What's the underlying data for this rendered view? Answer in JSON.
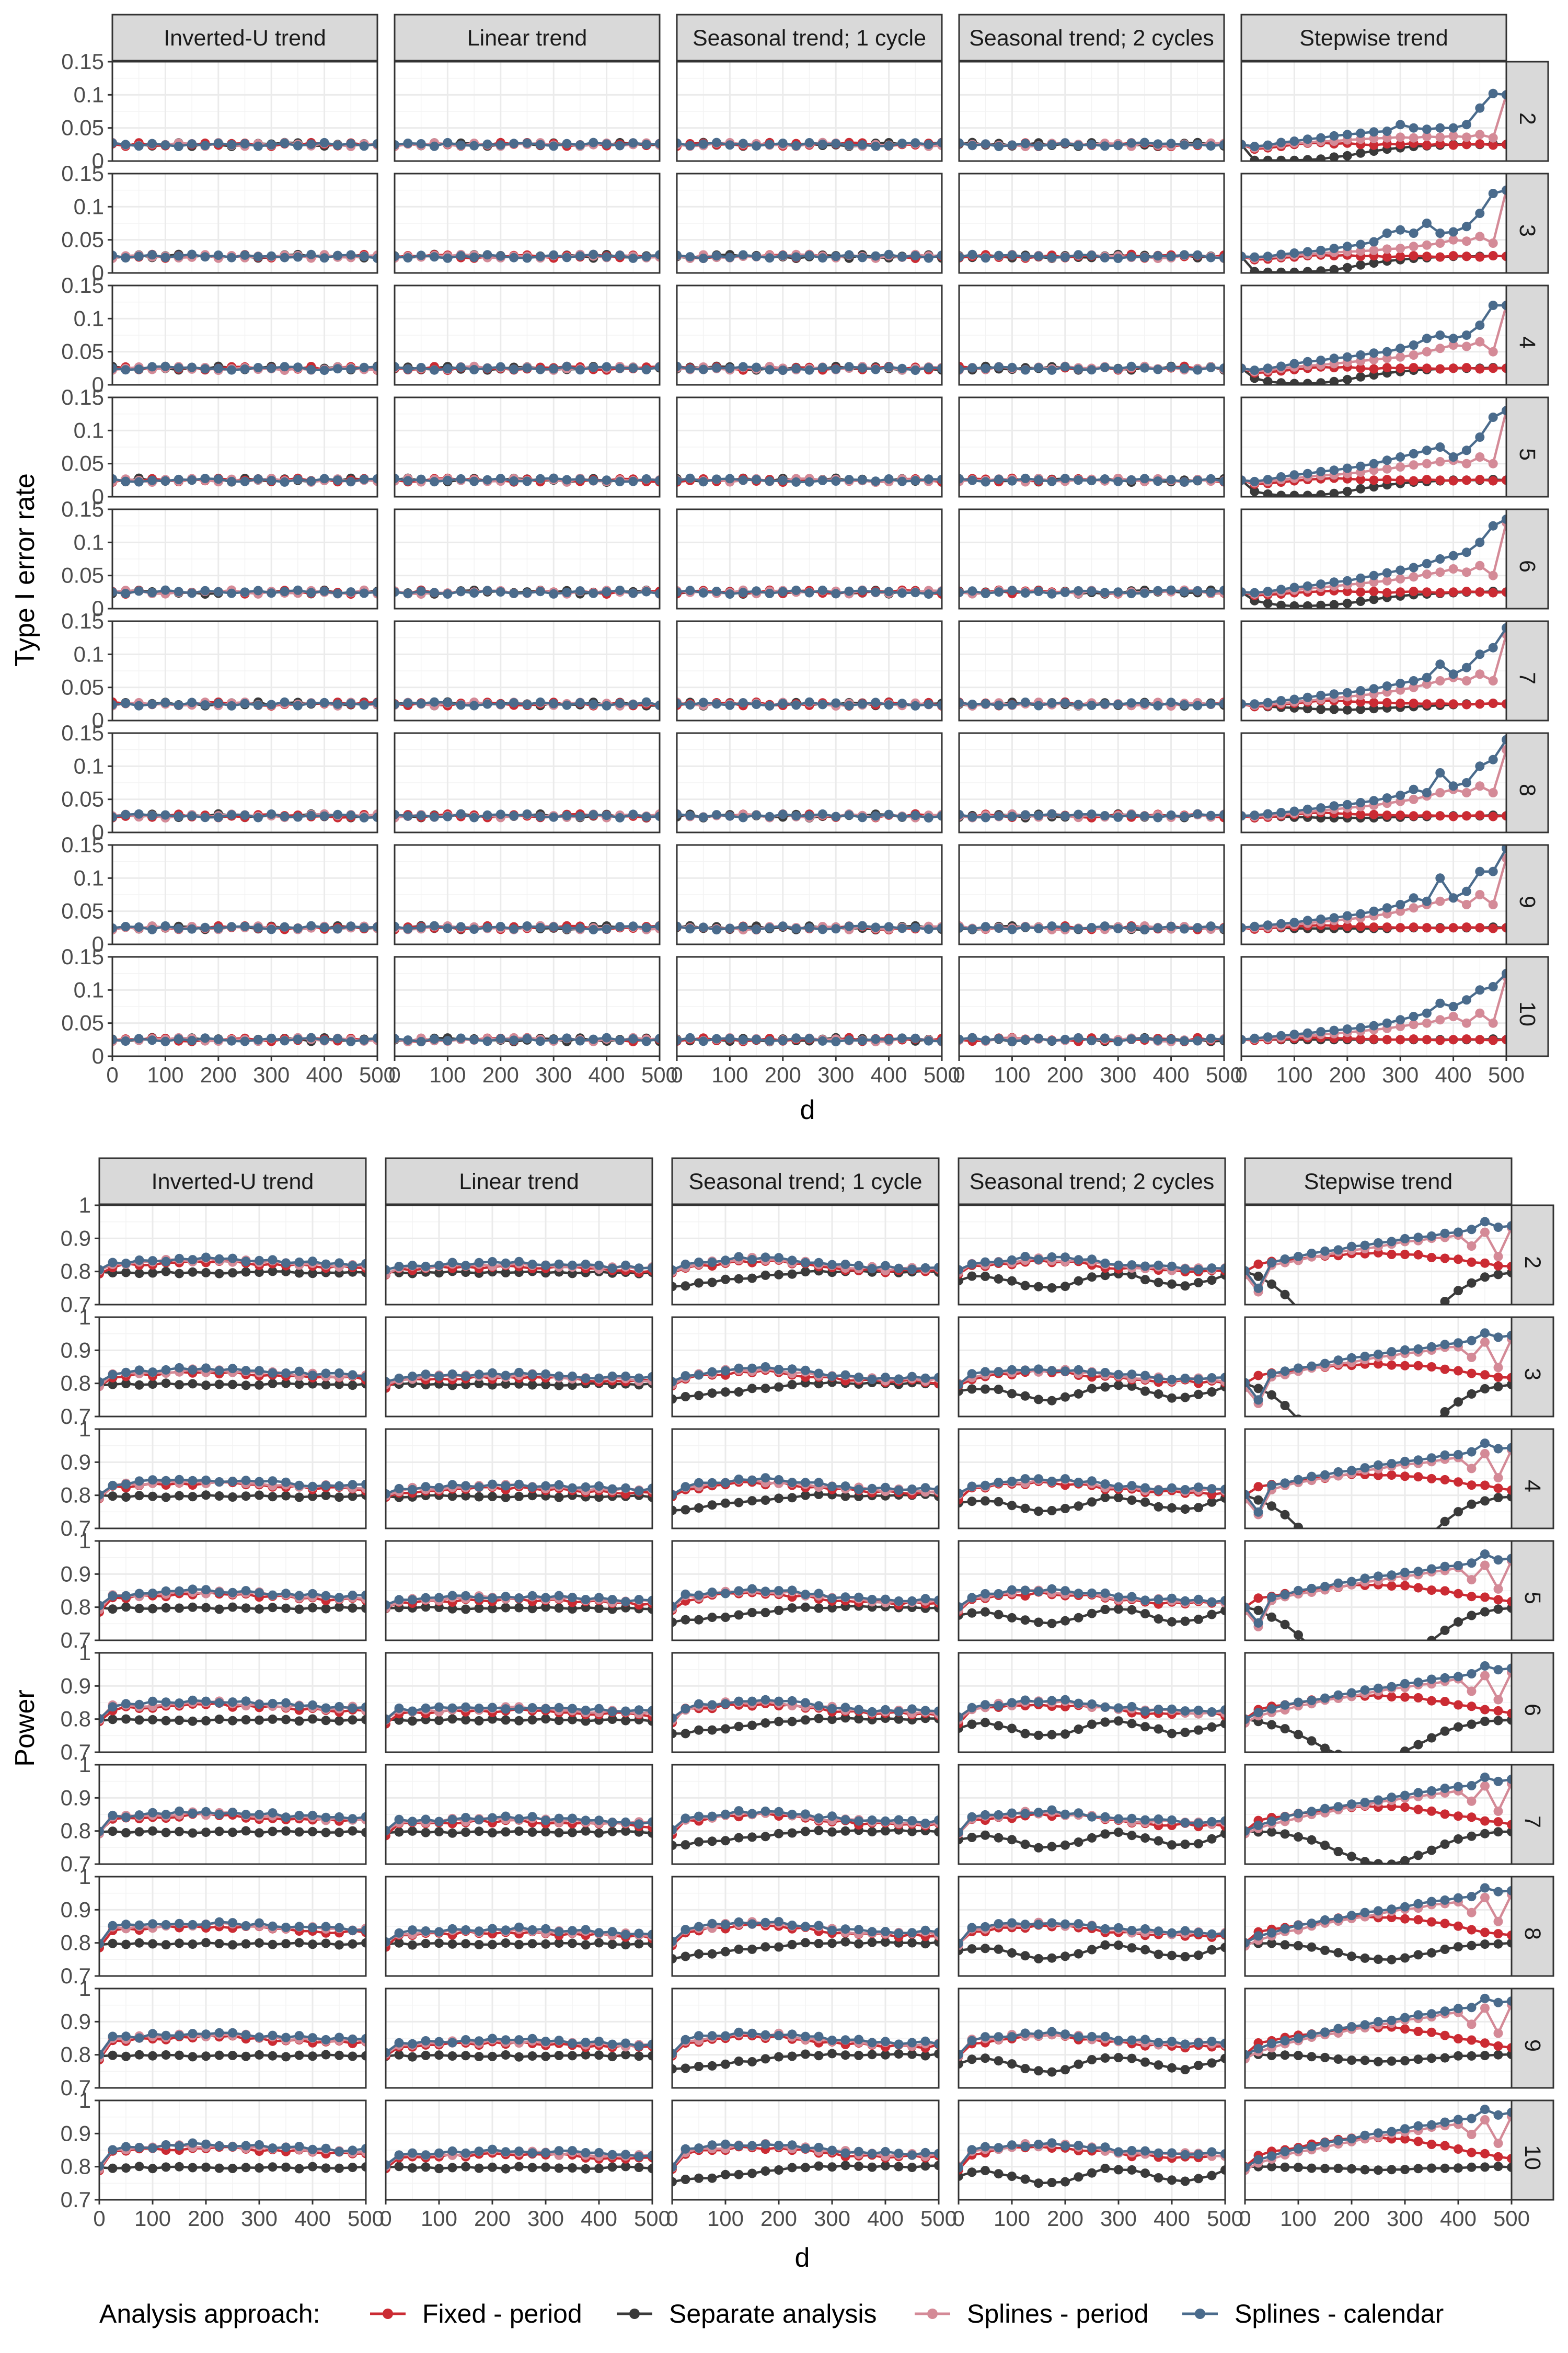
{
  "legend": {
    "title": "Analysis approach:",
    "items": [
      {
        "label": "Fixed - period",
        "color": "#CB2B33"
      },
      {
        "label": "Separate analysis",
        "color": "#3A3A3A"
      },
      {
        "label": "Splines - period",
        "color": "#D48A97"
      },
      {
        "label": "Splines - calendar",
        "color": "#4A6B8C"
      }
    ]
  },
  "chart_data": [
    {
      "type": "line",
      "title": "",
      "xlabel": "d",
      "ylabel": "Type I error rate",
      "facet_columns": [
        "Inverted-U trend",
        "Linear trend",
        "Seasonal trend; 1 cycle",
        "Seasonal trend; 2 cycles",
        "Stepwise trend"
      ],
      "facet_rows": [
        "2",
        "3",
        "4",
        "5",
        "6",
        "7",
        "8",
        "9",
        "10"
      ],
      "x": [
        0,
        25,
        50,
        75,
        100,
        125,
        150,
        175,
        200,
        225,
        250,
        275,
        300,
        325,
        350,
        375,
        400,
        425,
        450,
        475,
        500
      ],
      "xlim": [
        0,
        500
      ],
      "xticks": [
        "0",
        "100",
        "200",
        "300",
        "400",
        "500"
      ],
      "ylim": [
        0,
        0.15
      ],
      "yticks": [
        "0",
        "0.05",
        "0.1",
        "0.15"
      ],
      "grid": true,
      "legend_position": "bottom",
      "series_names": [
        "Fixed - period",
        "Separate analysis",
        "Splines - period",
        "Splines - calendar"
      ],
      "panels_note": "Non-stepwise columns: all four series approximately 0.025 at every d (all rows).",
      "stepwise_trend": {
        "2": {
          "Fixed - period": [
            0.025,
            0.018,
            0.02,
            0.022,
            0.025,
            0.027,
            0.028,
            0.026,
            0.027,
            0.025,
            0.024,
            0.026,
            0.025,
            0.027,
            0.024,
            0.026,
            0.024,
            0.025,
            0.026,
            0.024,
            0.025
          ],
          "Separate analysis": [
            0.025,
            0.001,
            0.001,
            0.001,
            0.001,
            0.002,
            0.003,
            0.006,
            0.008,
            0.012,
            0.015,
            0.018,
            0.02,
            0.022,
            0.023,
            0.024,
            0.025,
            0.025,
            0.025,
            0.026,
            0.025
          ],
          "Splines - period": [
            0.025,
            0.02,
            0.022,
            0.025,
            0.027,
            0.028,
            0.03,
            0.03,
            0.032,
            0.033,
            0.034,
            0.035,
            0.036,
            0.035,
            0.037,
            0.036,
            0.038,
            0.036,
            0.04,
            0.035,
            0.1
          ],
          "Splines - calendar": [
            0.025,
            0.022,
            0.024,
            0.028,
            0.03,
            0.033,
            0.035,
            0.038,
            0.04,
            0.042,
            0.044,
            0.045,
            0.055,
            0.05,
            0.048,
            0.05,
            0.05,
            0.055,
            0.08,
            0.102,
            0.1
          ]
        },
        "3": {
          "Fixed - period": [
            0.025,
            0.02,
            0.021,
            0.023,
            0.024,
            0.026,
            0.027,
            0.026,
            0.027,
            0.025,
            0.026,
            0.024,
            0.025,
            0.026,
            0.025,
            0.024,
            0.026,
            0.025,
            0.024,
            0.026,
            0.025
          ],
          "Separate analysis": [
            0.025,
            0.002,
            0.001,
            0.001,
            0.001,
            0.002,
            0.003,
            0.005,
            0.008,
            0.012,
            0.015,
            0.018,
            0.02,
            0.022,
            0.023,
            0.024,
            0.025,
            0.025,
            0.025,
            0.026,
            0.025
          ],
          "Splines - period": [
            0.025,
            0.022,
            0.024,
            0.025,
            0.027,
            0.028,
            0.03,
            0.031,
            0.032,
            0.033,
            0.034,
            0.036,
            0.037,
            0.04,
            0.042,
            0.045,
            0.05,
            0.048,
            0.055,
            0.045,
            0.125
          ],
          "Splines - calendar": [
            0.025,
            0.024,
            0.025,
            0.028,
            0.03,
            0.032,
            0.034,
            0.037,
            0.04,
            0.043,
            0.047,
            0.06,
            0.065,
            0.06,
            0.075,
            0.06,
            0.062,
            0.07,
            0.09,
            0.12,
            0.125
          ]
        },
        "4": {
          "Fixed - period": [
            0.025,
            0.018,
            0.019,
            0.021,
            0.023,
            0.025,
            0.027,
            0.026,
            0.027,
            0.025,
            0.024,
            0.026,
            0.025,
            0.026,
            0.025,
            0.024,
            0.025,
            0.026,
            0.024,
            0.025,
            0.025
          ],
          "Separate analysis": [
            0.025,
            0.01,
            0.005,
            0.003,
            0.002,
            0.002,
            0.003,
            0.005,
            0.008,
            0.012,
            0.015,
            0.018,
            0.02,
            0.022,
            0.023,
            0.024,
            0.025,
            0.025,
            0.025,
            0.026,
            0.025
          ],
          "Splines - period": [
            0.025,
            0.02,
            0.022,
            0.025,
            0.027,
            0.029,
            0.03,
            0.032,
            0.034,
            0.036,
            0.038,
            0.04,
            0.042,
            0.045,
            0.05,
            0.055,
            0.06,
            0.058,
            0.065,
            0.05,
            0.12
          ],
          "Splines - calendar": [
            0.025,
            0.022,
            0.025,
            0.028,
            0.032,
            0.035,
            0.037,
            0.04,
            0.042,
            0.045,
            0.048,
            0.05,
            0.055,
            0.06,
            0.07,
            0.075,
            0.07,
            0.075,
            0.09,
            0.12,
            0.12
          ]
        },
        "5": {
          "Fixed - period": [
            0.025,
            0.019,
            0.02,
            0.022,
            0.024,
            0.026,
            0.027,
            0.028,
            0.027,
            0.026,
            0.025,
            0.026,
            0.025,
            0.024,
            0.026,
            0.025,
            0.024,
            0.025,
            0.026,
            0.024,
            0.025
          ],
          "Separate analysis": [
            0.025,
            0.008,
            0.004,
            0.002,
            0.002,
            0.002,
            0.003,
            0.005,
            0.008,
            0.012,
            0.015,
            0.018,
            0.02,
            0.022,
            0.023,
            0.024,
            0.025,
            0.025,
            0.025,
            0.026,
            0.025
          ],
          "Splines - period": [
            0.025,
            0.021,
            0.023,
            0.026,
            0.028,
            0.03,
            0.032,
            0.033,
            0.035,
            0.037,
            0.04,
            0.042,
            0.045,
            0.048,
            0.05,
            0.053,
            0.055,
            0.05,
            0.06,
            0.05,
            0.13
          ],
          "Splines - calendar": [
            0.025,
            0.023,
            0.026,
            0.03,
            0.033,
            0.035,
            0.038,
            0.04,
            0.043,
            0.046,
            0.05,
            0.055,
            0.06,
            0.065,
            0.07,
            0.075,
            0.06,
            0.07,
            0.09,
            0.12,
            0.13
          ]
        },
        "6": {
          "Fixed - period": [
            0.025,
            0.02,
            0.021,
            0.022,
            0.024,
            0.025,
            0.026,
            0.027,
            0.026,
            0.025,
            0.026,
            0.024,
            0.025,
            0.026,
            0.025,
            0.024,
            0.025,
            0.026,
            0.025,
            0.024,
            0.025
          ],
          "Separate analysis": [
            0.025,
            0.012,
            0.008,
            0.005,
            0.004,
            0.004,
            0.005,
            0.006,
            0.008,
            0.011,
            0.014,
            0.017,
            0.019,
            0.021,
            0.022,
            0.023,
            0.024,
            0.025,
            0.025,
            0.026,
            0.025
          ],
          "Splines - period": [
            0.025,
            0.022,
            0.024,
            0.026,
            0.028,
            0.03,
            0.032,
            0.034,
            0.036,
            0.038,
            0.04,
            0.042,
            0.045,
            0.048,
            0.052,
            0.055,
            0.06,
            0.055,
            0.065,
            0.05,
            0.13
          ],
          "Splines - calendar": [
            0.025,
            0.024,
            0.026,
            0.029,
            0.032,
            0.034,
            0.037,
            0.04,
            0.042,
            0.046,
            0.05,
            0.054,
            0.058,
            0.062,
            0.068,
            0.075,
            0.08,
            0.085,
            0.1,
            0.125,
            0.135
          ]
        },
        "7": {
          "Fixed - period": [
            0.025,
            0.021,
            0.022,
            0.024,
            0.026,
            0.028,
            0.03,
            0.03,
            0.029,
            0.028,
            0.027,
            0.027,
            0.026,
            0.026,
            0.025,
            0.026,
            0.025,
            0.024,
            0.025,
            0.026,
            0.025
          ],
          "Separate analysis": [
            0.025,
            0.022,
            0.021,
            0.02,
            0.019,
            0.018,
            0.017,
            0.017,
            0.016,
            0.017,
            0.018,
            0.019,
            0.02,
            0.021,
            0.022,
            0.023,
            0.024,
            0.025,
            0.025,
            0.026,
            0.025
          ],
          "Splines - period": [
            0.025,
            0.023,
            0.024,
            0.026,
            0.028,
            0.03,
            0.032,
            0.034,
            0.036,
            0.038,
            0.04,
            0.043,
            0.046,
            0.05,
            0.055,
            0.06,
            0.065,
            0.06,
            0.07,
            0.06,
            0.13
          ],
          "Splines - calendar": [
            0.025,
            0.025,
            0.027,
            0.03,
            0.032,
            0.035,
            0.038,
            0.04,
            0.042,
            0.045,
            0.048,
            0.052,
            0.056,
            0.06,
            0.065,
            0.085,
            0.07,
            0.08,
            0.1,
            0.11,
            0.14
          ]
        },
        "8": {
          "Fixed - period": [
            0.025,
            0.022,
            0.023,
            0.025,
            0.027,
            0.029,
            0.03,
            0.029,
            0.028,
            0.027,
            0.027,
            0.026,
            0.026,
            0.025,
            0.026,
            0.025,
            0.024,
            0.025,
            0.026,
            0.024,
            0.025
          ],
          "Separate analysis": [
            0.025,
            0.025,
            0.024,
            0.024,
            0.023,
            0.023,
            0.022,
            0.022,
            0.022,
            0.022,
            0.022,
            0.023,
            0.023,
            0.024,
            0.024,
            0.025,
            0.025,
            0.025,
            0.025,
            0.026,
            0.025
          ],
          "Splines - period": [
            0.025,
            0.024,
            0.025,
            0.027,
            0.029,
            0.031,
            0.033,
            0.035,
            0.037,
            0.039,
            0.041,
            0.044,
            0.047,
            0.05,
            0.055,
            0.06,
            0.065,
            0.06,
            0.07,
            0.06,
            0.125
          ],
          "Splines - calendar": [
            0.025,
            0.026,
            0.028,
            0.03,
            0.032,
            0.035,
            0.037,
            0.04,
            0.042,
            0.045,
            0.048,
            0.052,
            0.056,
            0.065,
            0.06,
            0.09,
            0.07,
            0.075,
            0.1,
            0.11,
            0.14
          ]
        },
        "9": {
          "Fixed - period": [
            0.025,
            0.023,
            0.024,
            0.026,
            0.027,
            0.028,
            0.029,
            0.028,
            0.027,
            0.027,
            0.026,
            0.026,
            0.025,
            0.026,
            0.025,
            0.024,
            0.025,
            0.026,
            0.025,
            0.024,
            0.025
          ],
          "Separate analysis": [
            0.025,
            0.025,
            0.025,
            0.025,
            0.024,
            0.024,
            0.024,
            0.024,
            0.024,
            0.024,
            0.024,
            0.024,
            0.025,
            0.025,
            0.025,
            0.025,
            0.025,
            0.025,
            0.025,
            0.026,
            0.025
          ],
          "Splines - period": [
            0.025,
            0.025,
            0.026,
            0.028,
            0.03,
            0.032,
            0.034,
            0.036,
            0.038,
            0.04,
            0.043,
            0.046,
            0.05,
            0.055,
            0.06,
            0.065,
            0.07,
            0.06,
            0.075,
            0.06,
            0.13
          ],
          "Splines - calendar": [
            0.025,
            0.027,
            0.029,
            0.031,
            0.033,
            0.036,
            0.038,
            0.04,
            0.043,
            0.046,
            0.05,
            0.055,
            0.06,
            0.07,
            0.065,
            0.1,
            0.07,
            0.08,
            0.11,
            0.11,
            0.145
          ]
        },
        "10": {
          "Fixed - period": [
            0.025,
            0.024,
            0.025,
            0.026,
            0.027,
            0.028,
            0.028,
            0.027,
            0.027,
            0.026,
            0.026,
            0.025,
            0.025,
            0.026,
            0.025,
            0.024,
            0.025,
            0.026,
            0.025,
            0.024,
            0.025
          ],
          "Separate analysis": [
            0.025,
            0.025,
            0.025,
            0.025,
            0.025,
            0.025,
            0.025,
            0.025,
            0.025,
            0.025,
            0.025,
            0.025,
            0.025,
            0.025,
            0.025,
            0.025,
            0.025,
            0.025,
            0.025,
            0.026,
            0.025
          ],
          "Splines - period": [
            0.025,
            0.026,
            0.027,
            0.028,
            0.03,
            0.031,
            0.033,
            0.034,
            0.036,
            0.038,
            0.04,
            0.042,
            0.045,
            0.048,
            0.05,
            0.055,
            0.06,
            0.05,
            0.065,
            0.05,
            0.12
          ],
          "Splines - calendar": [
            0.025,
            0.027,
            0.029,
            0.031,
            0.033,
            0.035,
            0.037,
            0.039,
            0.041,
            0.043,
            0.046,
            0.05,
            0.055,
            0.06,
            0.065,
            0.08,
            0.075,
            0.085,
            0.1,
            0.105,
            0.125
          ]
        }
      }
    },
    {
      "type": "line",
      "title": "",
      "xlabel": "d",
      "ylabel": "Power",
      "facet_columns": [
        "Inverted-U trend",
        "Linear trend",
        "Seasonal trend; 1 cycle",
        "Seasonal trend; 2 cycles",
        "Stepwise trend"
      ],
      "facet_rows": [
        "2",
        "3",
        "4",
        "5",
        "6",
        "7",
        "8",
        "9",
        "10"
      ],
      "x": [
        0,
        25,
        50,
        75,
        100,
        125,
        150,
        175,
        200,
        225,
        250,
        275,
        300,
        325,
        350,
        375,
        400,
        425,
        450,
        475,
        500
      ],
      "xlim": [
        0,
        500
      ],
      "xticks": [
        "0",
        "100",
        "200",
        "300",
        "400",
        "500"
      ],
      "ylim": [
        0.7,
        1
      ],
      "yticks": [
        "0.7",
        "0.8",
        "0.9",
        "1"
      ],
      "grid": true,
      "legend_position": "bottom",
      "series_names": [
        "Fixed - period",
        "Separate analysis",
        "Splines - period",
        "Splines - calendar"
      ],
      "panels_note": "Non-stepwise columns: Separate analysis near 0.80; model-based series rising to about 0.83-0.86 around d=150-250. Stepwise trend: Fixed - period peaks near 0.86 then declines to 0.80; Separate analysis dips far below the axis limit for rows 2-6 before recovering to 0.80; Splines series rise to about 0.95-0.97 at d=500."
    }
  ]
}
